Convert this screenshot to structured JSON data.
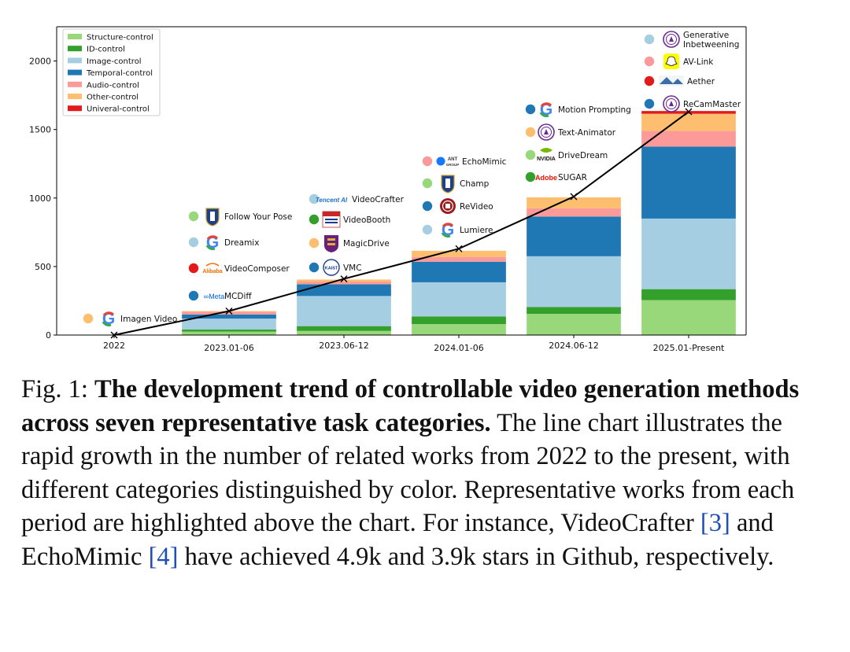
{
  "chart_data": {
    "type": "bar",
    "stacked": true,
    "categories": [
      "2022",
      "2023.01-06",
      "2023.06-12",
      "2024.01-06",
      "2024.06-12",
      "2025.01-Present"
    ],
    "ylim": [
      0,
      2250
    ],
    "yticks": [
      0,
      500,
      1000,
      1500,
      2000
    ],
    "legend_position": "top-left",
    "series": [
      {
        "name": "Structure-control",
        "color": "#98d87a",
        "values": [
          0,
          25,
          30,
          80,
          155,
          255
        ]
      },
      {
        "name": "ID-control",
        "color": "#33a02c",
        "values": [
          0,
          15,
          35,
          55,
          50,
          80
        ]
      },
      {
        "name": "Image-control",
        "color": "#a6cee3",
        "values": [
          0,
          80,
          220,
          250,
          370,
          515
        ]
      },
      {
        "name": "Temporal-control",
        "color": "#1f78b4",
        "values": [
          0,
          30,
          85,
          150,
          290,
          525
        ]
      },
      {
        "name": "Audio-control",
        "color": "#fb9a99",
        "values": [
          0,
          20,
          20,
          35,
          60,
          115
        ]
      },
      {
        "name": "Other-control",
        "color": "#fdbf6f",
        "values": [
          0,
          5,
          15,
          45,
          80,
          125
        ]
      },
      {
        "name": "Univeral-control",
        "color": "#e31a1c",
        "values": [
          0,
          0,
          0,
          0,
          0,
          20
        ]
      }
    ],
    "line": {
      "values": [
        0,
        175,
        410,
        630,
        1010,
        1630
      ],
      "color": "#000000",
      "marker": "x"
    }
  },
  "works": [
    {
      "label": "Imagen Video",
      "category": 0,
      "dot": "#fdbf6f",
      "logo": "google-icon"
    },
    {
      "label": "Follow Your Pose",
      "category": 1,
      "dot": "#98d87a",
      "logo": "university-shield-icon"
    },
    {
      "label": "Dreamix",
      "category": 1,
      "dot": "#a6cee3",
      "logo": "google-icon"
    },
    {
      "label": "VideoComposer",
      "category": 1,
      "dot": "#e31a1c",
      "logo": "alibaba-logo"
    },
    {
      "label": "MCDiff",
      "category": 1,
      "dot": "#1f78b4",
      "logo": "meta-logo"
    },
    {
      "label": "VideoCrafter",
      "category": 2,
      "dot": "#a6cee3",
      "logo": "tencent-logo"
    },
    {
      "label": "VideoBooth",
      "category": 2,
      "dot": "#33a02c",
      "logo": "ntu-logo"
    },
    {
      "label": "MagicDrive",
      "category": 2,
      "dot": "#fdbf6f",
      "logo": "cuhk-crest-icon"
    },
    {
      "label": "VMC",
      "category": 2,
      "dot": "#1f78b4",
      "logo": "kaist-logo"
    },
    {
      "label": "EchoMimic",
      "category": 3,
      "dot": "#fb9a99",
      "logo": "ant-group-logo"
    },
    {
      "label": "Champ",
      "category": 3,
      "dot": "#98d87a",
      "logo": "university-shield-icon"
    },
    {
      "label": "ReVideo",
      "category": 3,
      "dot": "#1f78b4",
      "logo": "pku-seal-icon"
    },
    {
      "label": "Lumiere",
      "category": 3,
      "dot": "#a6cee3",
      "logo": "google-icon"
    },
    {
      "label": "Motion Prompting",
      "category": 4,
      "dot": "#1f78b4",
      "logo": "google-icon"
    },
    {
      "label": "Text-Animator",
      "category": 4,
      "dot": "#fdbf6f",
      "logo": "university-seal-icon"
    },
    {
      "label": "DriveDream",
      "category": 4,
      "dot": "#98d87a",
      "logo": "nvidia-logo"
    },
    {
      "label": "SUGAR",
      "category": 4,
      "dot": "#33a02c",
      "logo": "adobe-logo"
    },
    {
      "label": "Generative\nInbetweening",
      "category": 5,
      "dot": "#a6cee3",
      "logo": "university-seal-icon"
    },
    {
      "label": "AV-Link",
      "category": 5,
      "dot": "#fb9a99",
      "logo": "snapchat-icon"
    },
    {
      "label": "Aether",
      "category": 5,
      "dot": "#e31a1c",
      "logo": "lab-banner-logo"
    },
    {
      "label": "ReCamMaster",
      "category": 5,
      "dot": "#1f78b4",
      "logo": "university-seal-icon"
    }
  ],
  "logo_text": {
    "alibaba": "Alibaba",
    "meta": "∞Meta",
    "tencent": "Tencent AI",
    "ant": "ANT GROUP",
    "nvidia": "NVIDIA",
    "adobe": "Adobe"
  },
  "caption": {
    "prefix": "Fig. 1: ",
    "bold": "The development trend of controllable video generation methods across seven representative task categories.",
    "text1": " The line chart illustrates the rapid growth in the number of related works from 2022 to the present, with different categories distinguished by color. Representative works from each period are highlighted above the chart. For instance, VideoCrafter ",
    "cite1": "[3]",
    "text2": " and EchoMimic ",
    "cite2": "[4]",
    "text3": " have achieved 4.9k and 3.9k stars in Github, respectively."
  }
}
